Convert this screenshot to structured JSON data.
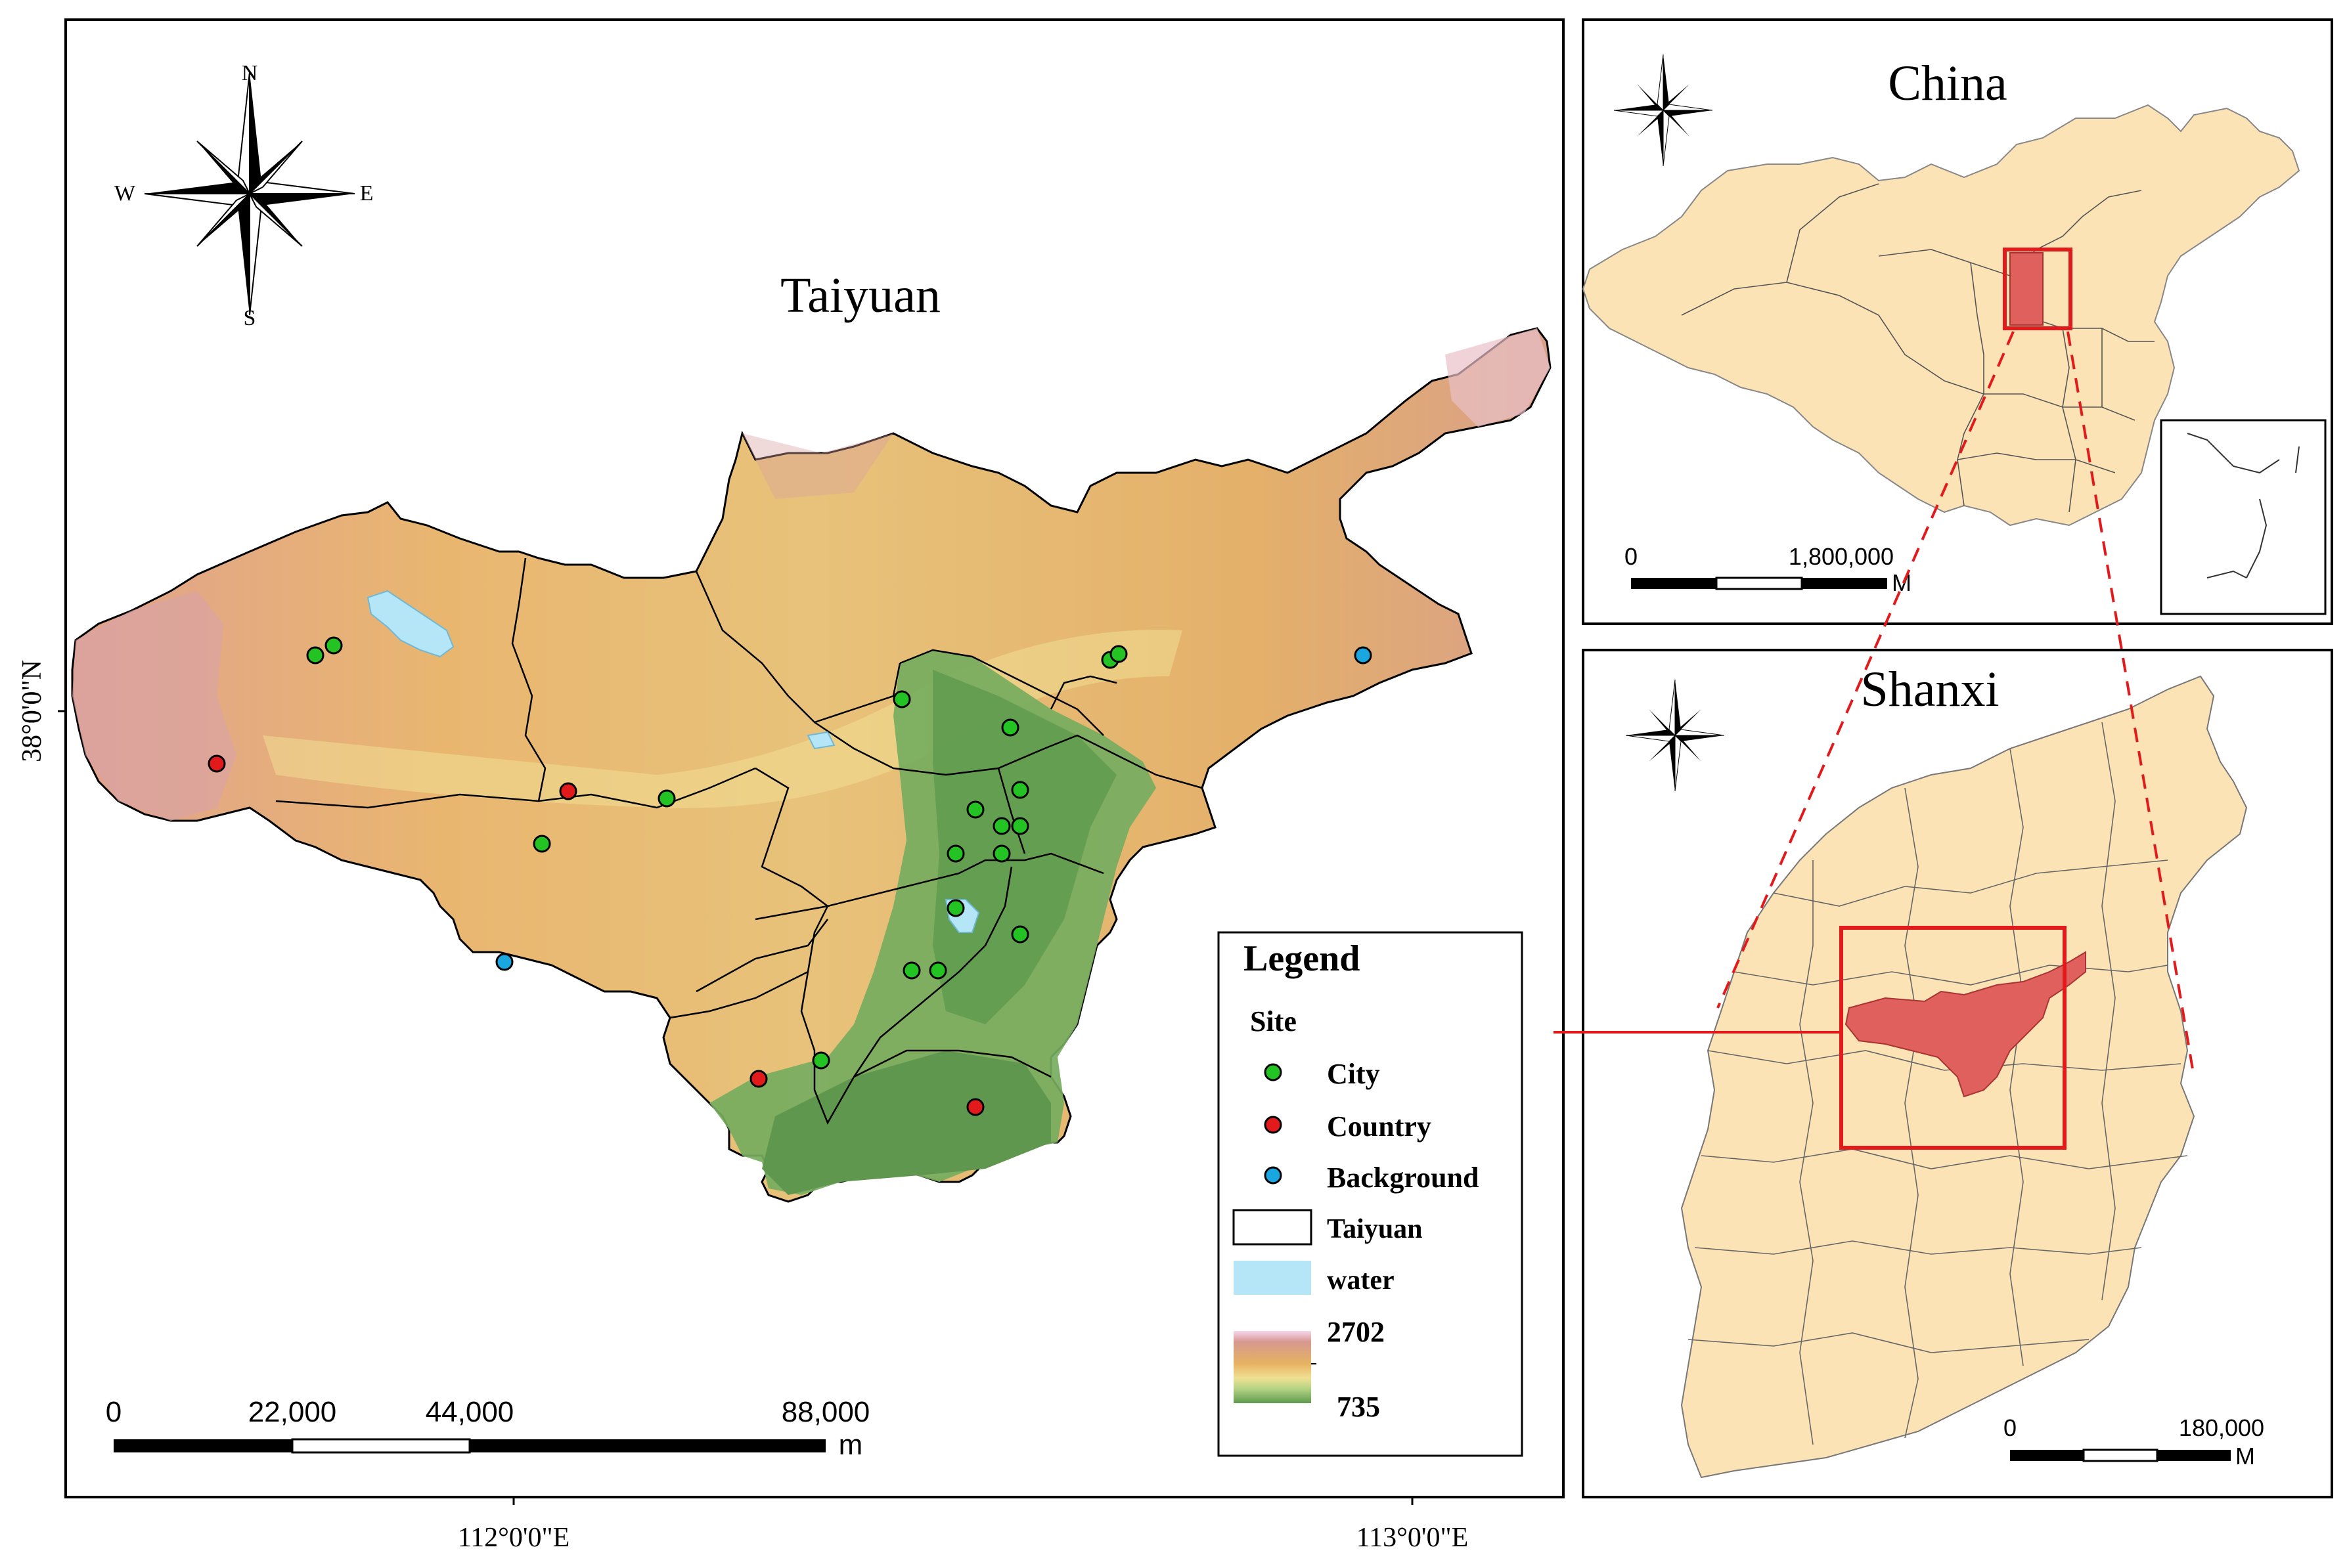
{
  "main_map": {
    "title": "Taiyuan",
    "lat_label": "38°0'0\"N",
    "lon_labels": [
      "112°0'0\"E",
      "113°0'0\"E"
    ],
    "north_arrow": {
      "n": "N",
      "s": "S",
      "e": "E",
      "w": "W"
    },
    "scale_bar": {
      "ticks": [
        "0",
        "22,000",
        "44,000",
        "88,000"
      ],
      "unit": "m"
    }
  },
  "legend": {
    "title": "Legend",
    "site_heading": "Site",
    "sites": [
      {
        "label": "City",
        "color": "#22c322"
      },
      {
        "label": "Country",
        "color": "#e31a1c"
      },
      {
        "label": "Background",
        "color": "#1aa7e0"
      }
    ],
    "boundary_label": "Taiyuan",
    "water_label": "water",
    "water_color": "#b4e6f7",
    "elevation_high": "2702",
    "elevation_low": "735"
  },
  "china_inset": {
    "title": "China",
    "scale_bar": {
      "ticks": [
        "0",
        "1,800,000"
      ],
      "unit": "M"
    }
  },
  "shanxi_inset": {
    "title": "Shanxi",
    "scale_bar": {
      "ticks": [
        "0",
        "180,000"
      ],
      "unit": "M"
    }
  },
  "colors": {
    "land": "#fce3b6",
    "highlight": "#e0605e",
    "frame": "#000000"
  }
}
